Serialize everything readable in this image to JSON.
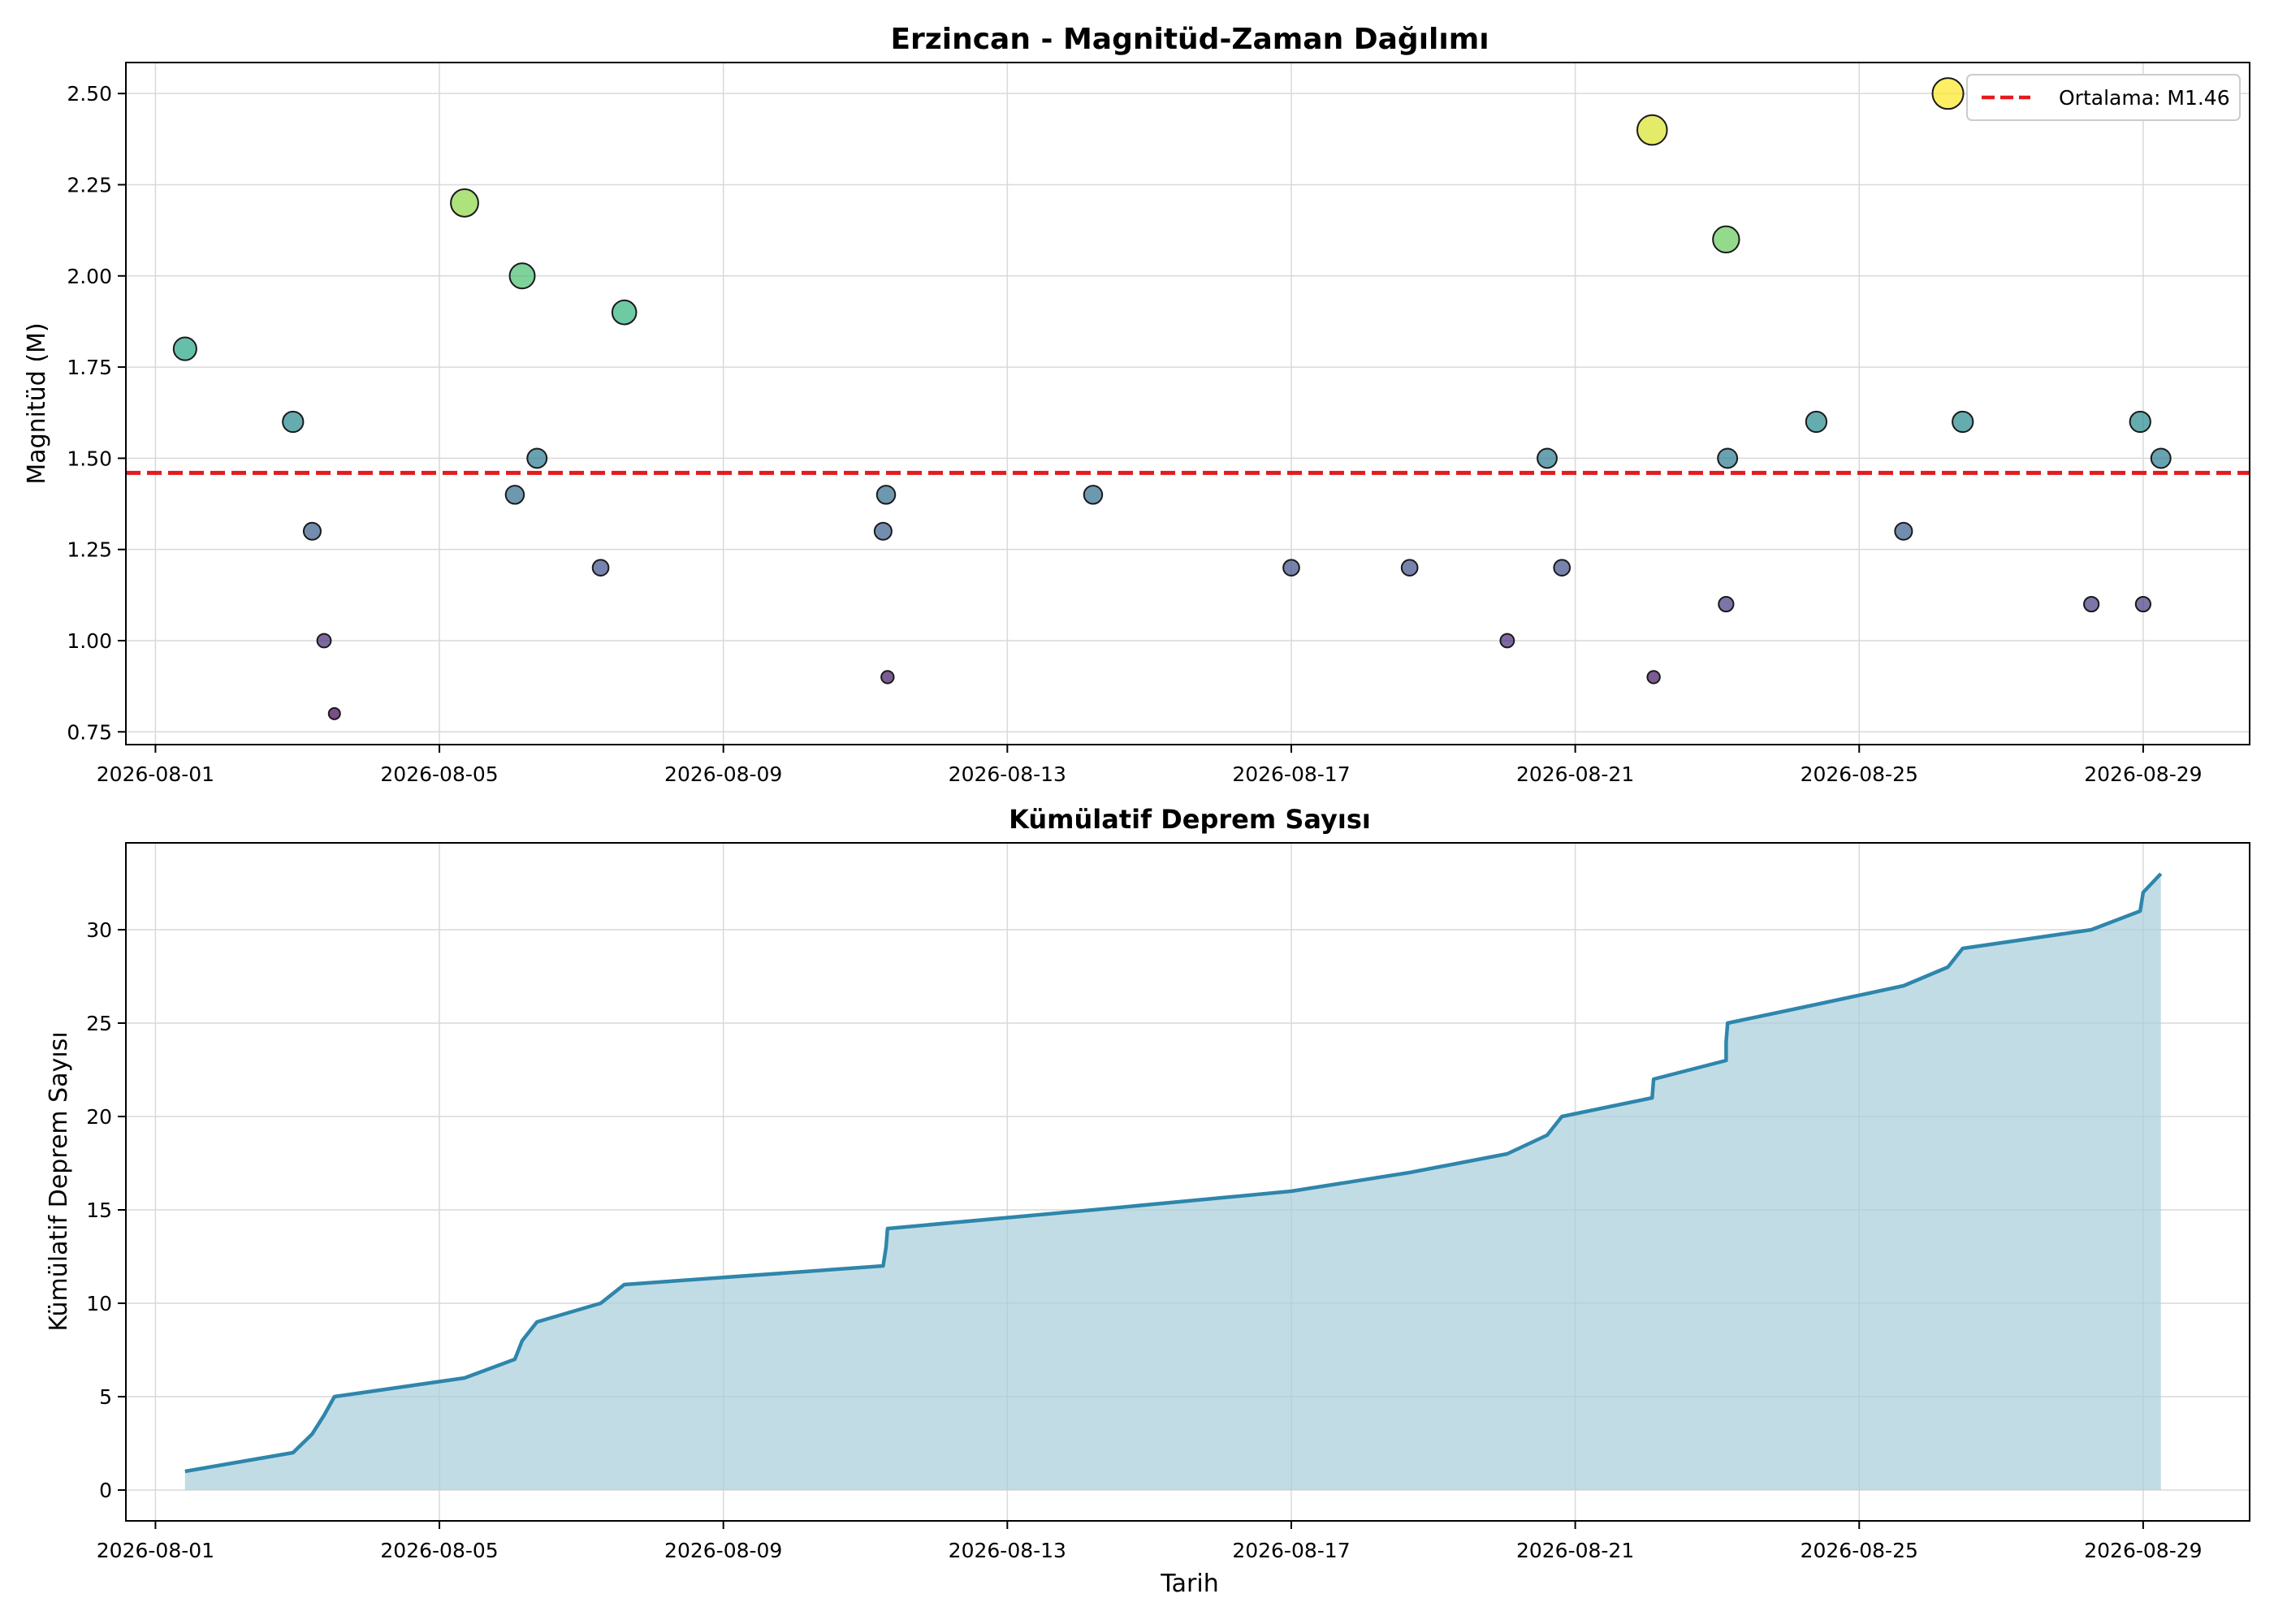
{
  "chart_data": [
    {
      "type": "scatter",
      "title": "Erzincan - Magnitüd-Zaman Dağılımı",
      "xlabel": "",
      "ylabel": "Magnitüd (M)",
      "xlim": [
        "2026-07-31T14:00",
        "2026-08-30T12:00"
      ],
      "ylim": [
        0.715,
        2.585
      ],
      "yticks": [
        0.75,
        1.0,
        1.25,
        1.5,
        1.75,
        2.0,
        2.25,
        2.5
      ],
      "xticks": [
        "2026-08-01",
        "2026-08-05",
        "2026-08-09",
        "2026-08-13",
        "2026-08-17",
        "2026-08-21",
        "2026-08-25",
        "2026-08-29"
      ],
      "grid": true,
      "colormap": "viridis",
      "legend": {
        "placement": "top-right",
        "label": "Ortalama: M1.46",
        "color": "#e41a1c"
      },
      "mean_line": 1.46,
      "points": [
        {
          "x": "2026-08-01T10:00",
          "y": 1.8
        },
        {
          "x": "2026-08-02T22:30",
          "y": 1.6
        },
        {
          "x": "2026-08-03T05:00",
          "y": 1.3
        },
        {
          "x": "2026-08-03T09:00",
          "y": 1.0
        },
        {
          "x": "2026-08-03T12:30",
          "y": 0.8
        },
        {
          "x": "2026-08-05T08:30",
          "y": 2.2
        },
        {
          "x": "2026-08-06T01:30",
          "y": 1.4
        },
        {
          "x": "2026-08-06T04:00",
          "y": 2.0
        },
        {
          "x": "2026-08-06T09:00",
          "y": 1.5
        },
        {
          "x": "2026-08-07T06:30",
          "y": 1.2
        },
        {
          "x": "2026-08-07T14:30",
          "y": 1.9
        },
        {
          "x": "2026-08-11T06:00",
          "y": 1.3
        },
        {
          "x": "2026-08-11T07:00",
          "y": 1.4
        },
        {
          "x": "2026-08-11T07:30",
          "y": 0.9
        },
        {
          "x": "2026-08-14T05:00",
          "y": 1.4
        },
        {
          "x": "2026-08-17T00:00",
          "y": 1.2
        },
        {
          "x": "2026-08-18T16:00",
          "y": 1.2
        },
        {
          "x": "2026-08-20T01:00",
          "y": 1.0
        },
        {
          "x": "2026-08-20T14:30",
          "y": 1.5
        },
        {
          "x": "2026-08-20T19:30",
          "y": 1.2
        },
        {
          "x": "2026-08-22T02:00",
          "y": 2.4
        },
        {
          "x": "2026-08-22T02:30",
          "y": 0.9
        },
        {
          "x": "2026-08-23T03:00",
          "y": 2.1
        },
        {
          "x": "2026-08-23T03:30",
          "y": 1.5
        },
        {
          "x": "2026-08-23T03:00",
          "y": 1.1
        },
        {
          "x": "2026-08-24T09:30",
          "y": 1.6
        },
        {
          "x": "2026-08-25T15:00",
          "y": 1.3
        },
        {
          "x": "2026-08-26T06:00",
          "y": 2.5
        },
        {
          "x": "2026-08-26T11:00",
          "y": 1.6
        },
        {
          "x": "2026-08-28T06:30",
          "y": 1.1
        },
        {
          "x": "2026-08-28T23:00",
          "y": 1.6
        },
        {
          "x": "2026-08-29T00:00",
          "y": 1.1
        },
        {
          "x": "2026-08-29T06:00",
          "y": 1.5
        }
      ]
    },
    {
      "type": "area",
      "title": "Kümülatif Deprem Sayısı",
      "xlabel": "Tarih",
      "ylabel": "Kümülatif Deprem Sayısı",
      "xlim": [
        "2026-07-31T14:00",
        "2026-08-30T12:00"
      ],
      "ylim": [
        -1.65,
        34.65
      ],
      "yticks": [
        0,
        5,
        10,
        15,
        20,
        25,
        30
      ],
      "xticks": [
        "2026-08-01",
        "2026-08-05",
        "2026-08-09",
        "2026-08-13",
        "2026-08-17",
        "2026-08-21",
        "2026-08-25",
        "2026-08-29"
      ],
      "grid": true,
      "line_color": "#2e86ab",
      "fill_color": "#a8cddc",
      "points": [
        {
          "x": "2026-08-01T10:00",
          "y": 1
        },
        {
          "x": "2026-08-02T22:30",
          "y": 2
        },
        {
          "x": "2026-08-03T05:00",
          "y": 3
        },
        {
          "x": "2026-08-03T09:00",
          "y": 4
        },
        {
          "x": "2026-08-03T12:30",
          "y": 5
        },
        {
          "x": "2026-08-05T08:30",
          "y": 6
        },
        {
          "x": "2026-08-06T01:30",
          "y": 7
        },
        {
          "x": "2026-08-06T04:00",
          "y": 8
        },
        {
          "x": "2026-08-06T09:00",
          "y": 9
        },
        {
          "x": "2026-08-07T06:30",
          "y": 10
        },
        {
          "x": "2026-08-07T14:30",
          "y": 11
        },
        {
          "x": "2026-08-11T06:00",
          "y": 12
        },
        {
          "x": "2026-08-11T07:00",
          "y": 13
        },
        {
          "x": "2026-08-11T07:30",
          "y": 14
        },
        {
          "x": "2026-08-14T05:00",
          "y": 15
        },
        {
          "x": "2026-08-17T00:00",
          "y": 16
        },
        {
          "x": "2026-08-18T16:00",
          "y": 17
        },
        {
          "x": "2026-08-20T01:00",
          "y": 18
        },
        {
          "x": "2026-08-20T14:30",
          "y": 19
        },
        {
          "x": "2026-08-20T19:30",
          "y": 20
        },
        {
          "x": "2026-08-22T02:00",
          "y": 21
        },
        {
          "x": "2026-08-22T02:30",
          "y": 22
        },
        {
          "x": "2026-08-23T03:00",
          "y": 23
        },
        {
          "x": "2026-08-23T03:00",
          "y": 24
        },
        {
          "x": "2026-08-23T03:30",
          "y": 25
        },
        {
          "x": "2026-08-24T09:30",
          "y": 26
        },
        {
          "x": "2026-08-25T15:00",
          "y": 27
        },
        {
          "x": "2026-08-26T06:00",
          "y": 28
        },
        {
          "x": "2026-08-26T11:00",
          "y": 29
        },
        {
          "x": "2026-08-28T06:30",
          "y": 30
        },
        {
          "x": "2026-08-28T23:00",
          "y": 31
        },
        {
          "x": "2026-08-29T00:00",
          "y": 32
        },
        {
          "x": "2026-08-29T06:00",
          "y": 33
        }
      ]
    }
  ]
}
